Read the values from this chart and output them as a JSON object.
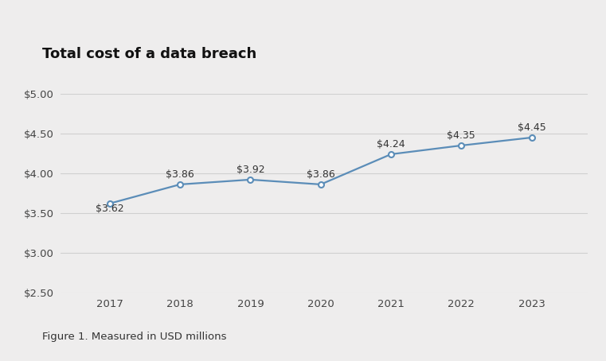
{
  "years": [
    2017,
    2018,
    2019,
    2020,
    2021,
    2022,
    2023
  ],
  "values": [
    3.62,
    3.86,
    3.92,
    3.86,
    4.24,
    4.35,
    4.45
  ],
  "labels": [
    "$3.62",
    "$3.86",
    "$3.92",
    "$3.86",
    "$4.24",
    "$4.35",
    "$4.45"
  ],
  "title": "Total cost of a data breach",
  "caption": "Figure 1. Measured in USD millions",
  "ylim": [
    2.5,
    5.0
  ],
  "yticks": [
    2.5,
    3.0,
    3.5,
    4.0,
    4.5,
    5.0
  ],
  "ytick_labels": [
    "$2.50",
    "$3.00",
    "$3.50",
    "$4.00",
    "$4.50",
    "$5.00"
  ],
  "line_color": "#5b8db8",
  "marker_color": "#5b8db8",
  "bg_color": "#eeeded",
  "grid_color": "#d0d0d0",
  "title_fontsize": 13,
  "tick_fontsize": 9.5,
  "label_fontsize": 9,
  "caption_fontsize": 9.5,
  "label_offsets_x": [
    0,
    0,
    0,
    0,
    0,
    0,
    0
  ],
  "label_offsets_y": [
    -0.13,
    0.06,
    0.06,
    0.06,
    0.06,
    0.06,
    0.06
  ],
  "label_ha": [
    "center",
    "center",
    "center",
    "center",
    "center",
    "center",
    "center"
  ]
}
